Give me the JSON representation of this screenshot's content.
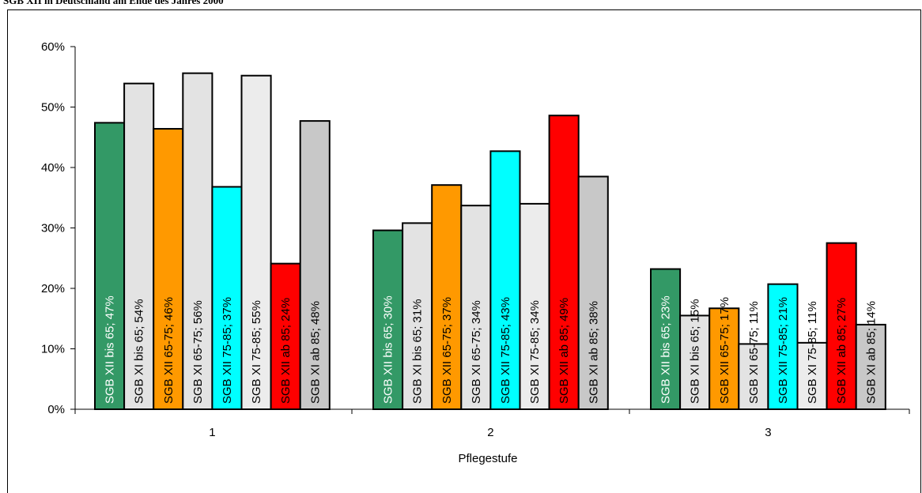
{
  "title": "SGB XII in Deutschland am Ende des Jahres 2000",
  "chart_data": {
    "type": "bar",
    "title": "SGB XII in Deutschland am Ende des Jahres 2000",
    "xlabel": "Pflegestufe",
    "ylabel": "",
    "ylim": [
      0,
      0.6
    ],
    "y_ticks": [
      "0%",
      "10%",
      "20%",
      "30%",
      "40%",
      "50%",
      "60%"
    ],
    "categories": [
      "1",
      "2",
      "3"
    ],
    "grid": false,
    "series": [
      {
        "name": "SGB XII bis 65",
        "color": "#339966",
        "text_color": "#ffffff",
        "values": [
          0.474,
          0.296,
          0.232
        ],
        "labels": [
          "SGB XII bis 65; 47%",
          "SGB XII bis 65; 30%",
          "SGB XII bis 65; 23%"
        ]
      },
      {
        "name": "SGB XI bis 65",
        "color": "#e3e3e3",
        "text_color": "#000000",
        "values": [
          0.539,
          0.308,
          0.155
        ],
        "labels": [
          "SGB XI bis 65; 54%",
          "SGB XI bis 65; 31%",
          "SGB XI bis 65; 15%"
        ]
      },
      {
        "name": "SGB XII 65-75",
        "color": "#ff9900",
        "text_color": "#000000",
        "values": [
          0.464,
          0.371,
          0.167
        ],
        "labels": [
          "SGB XII 65-75; 46%",
          "SGB XII 65-75; 37%",
          "SGB XII 65-75; 17%"
        ]
      },
      {
        "name": "SGB XI 65-75",
        "color": "#e3e3e3",
        "text_color": "#000000",
        "values": [
          0.556,
          0.337,
          0.108
        ],
        "labels": [
          "SGB XI 65-75; 56%",
          "SGB XI 65-75; 34%",
          "SGB XI 65-75; 11%"
        ]
      },
      {
        "name": "SGB XII 75-85",
        "color": "#00ffff",
        "text_color": "#000000",
        "values": [
          0.368,
          0.427,
          0.207
        ],
        "labels": [
          "SGB XII 75-85; 37%",
          "SGB XII 75-85; 43%",
          "SGB XII 75-85; 21%"
        ]
      },
      {
        "name": "SGB XI 75-85",
        "color": "#ececec",
        "text_color": "#000000",
        "values": [
          0.552,
          0.34,
          0.11
        ],
        "labels": [
          "SGB XI 75-85; 55%",
          "SGB XI 75-85; 34%",
          "SGB XI 75-85; 11%"
        ]
      },
      {
        "name": "SGB XII ab 85",
        "color": "#ff0000",
        "text_color": "#000000",
        "values": [
          0.241,
          0.486,
          0.275
        ],
        "labels": [
          "SGB XII ab 85; 24%",
          "SGB XII ab 85; 49%",
          "SGB XII ab 85; 27%"
        ]
      },
      {
        "name": "SGB XI ab 85",
        "color": "#c8c8c8",
        "text_color": "#000000",
        "values": [
          0.477,
          0.385,
          0.14
        ],
        "labels": [
          "SGB XI ab 85; 48%",
          "SGB XI ab 85; 38%",
          "SGB XI ab 85; 14%"
        ]
      }
    ]
  }
}
